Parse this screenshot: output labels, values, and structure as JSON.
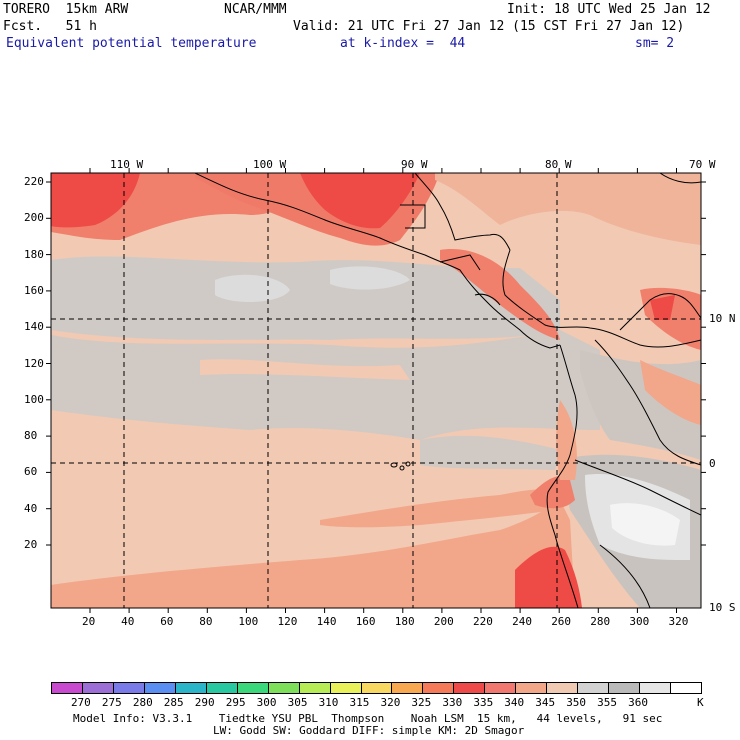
{
  "header": {
    "model": "TORERO  15km ARW",
    "center": "NCAR/MMM",
    "init": "Init: 18 UTC Wed 25 Jan 12",
    "fcst": "Fcst.   51 h",
    "valid": "Valid: 21 UTC Fri 27 Jan 12 (15 CST Fri 27 Jan 12)",
    "field": "Equivalent potential temperature",
    "level": "at k-index =  44",
    "smooth": "sm= 2"
  },
  "map": {
    "lon_labels": [
      "110 W",
      "100 W",
      "90 W",
      "80 W",
      "70 W"
    ],
    "lat_labels_right": [
      "10 N",
      "0",
      "10 S"
    ],
    "y_ticks": [
      "220",
      "200",
      "180",
      "160",
      "140",
      "120",
      "100",
      "80",
      "60",
      "40",
      "20"
    ],
    "x_ticks": [
      "20",
      "40",
      "60",
      "80",
      "100",
      "120",
      "140",
      "160",
      "180",
      "200",
      "220",
      "240",
      "260",
      "280",
      "300",
      "320"
    ]
  },
  "colorbar": {
    "labels": [
      "270",
      "275",
      "280",
      "285",
      "290",
      "295",
      "300",
      "305",
      "310",
      "315",
      "320",
      "325",
      "330",
      "335",
      "340",
      "345",
      "350",
      "355",
      "360"
    ],
    "unit": "K",
    "colors": [
      "#c84bcf",
      "#9b6fd6",
      "#7a7ae8",
      "#5a8ef0",
      "#2ab6c8",
      "#28c8a0",
      "#3ad87a",
      "#7ee05a",
      "#b8ec56",
      "#e8f05a",
      "#f8d860",
      "#f8a850",
      "#f47a5a",
      "#ee4a4a",
      "#f07870",
      "#f2a888",
      "#f0cab2",
      "#d2d2d2",
      "#bababa",
      "#e6e6e6",
      "#ffffff"
    ]
  },
  "footer": {
    "line1": "Model Info: V3.3.1    Tiedtke YSU PBL  Thompson    Noah LSM  15 km,   44 levels,   91 sec",
    "line2": "LW: Godd SW: Goddard DIFF: simple KM: 2D Smagor"
  }
}
